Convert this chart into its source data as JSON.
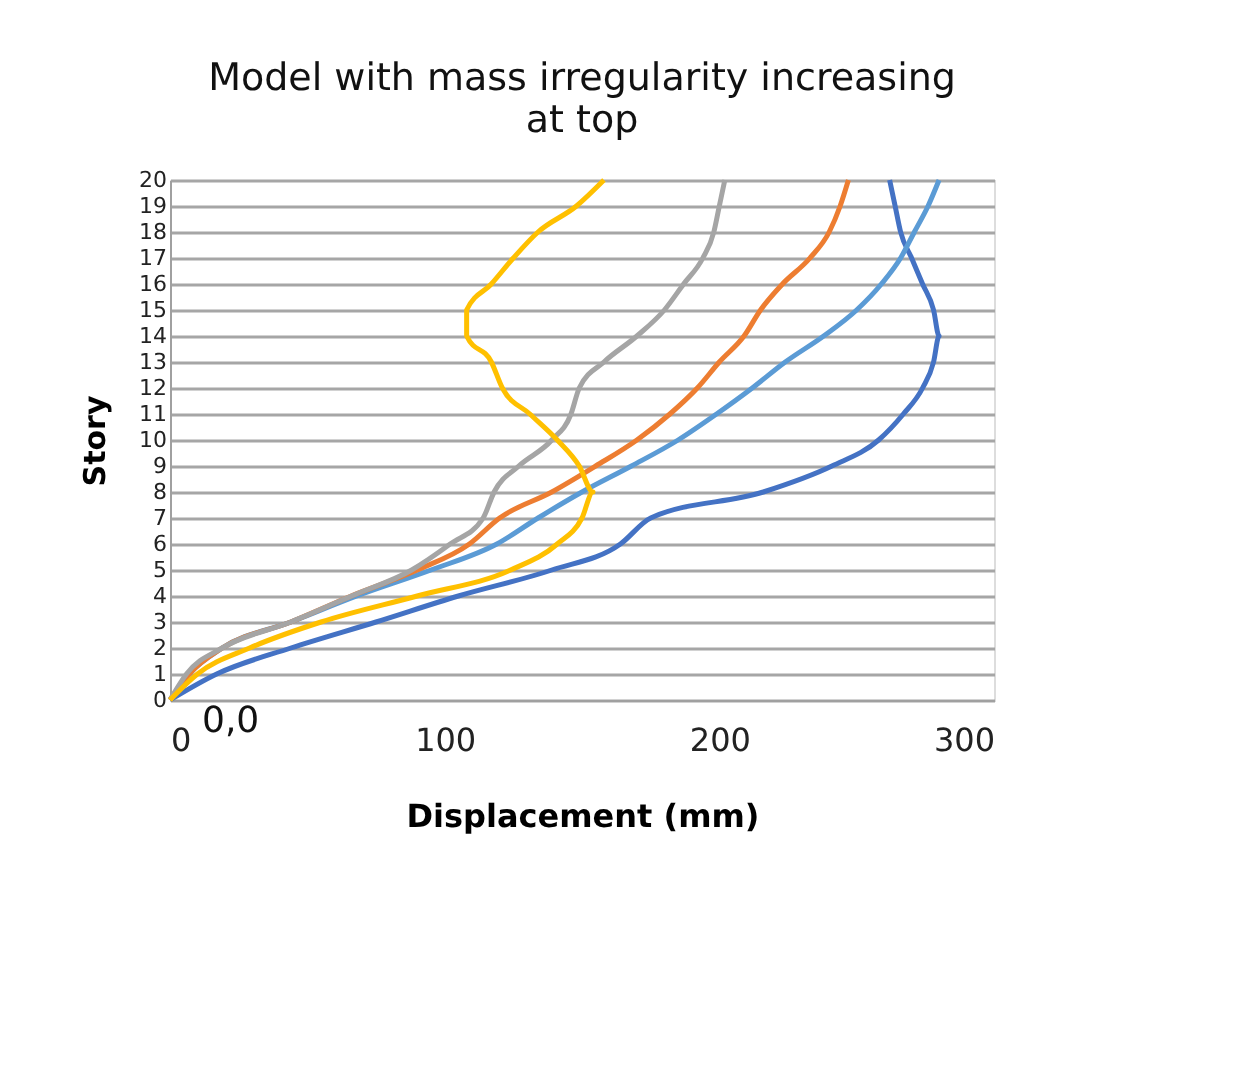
{
  "chart_data": {
    "type": "line",
    "title": "Model with mass irregularity increasing at top",
    "xlabel": "Displacement (mm)",
    "ylabel": "Story",
    "xlim": [
      0,
      300
    ],
    "xticks": [
      0,
      100,
      200,
      300
    ],
    "ylim": [
      0,
      20
    ],
    "yticks": [
      0,
      1,
      2,
      3,
      4,
      5,
      6,
      7,
      8,
      9,
      10,
      11,
      12,
      13,
      14,
      15,
      16,
      17,
      18,
      19,
      20
    ],
    "grid": "y",
    "legend": false,
    "marker": "none",
    "line_style": "solid",
    "annotations": [
      {
        "text": "0,0",
        "x": 0,
        "y": 0
      }
    ],
    "series": [
      {
        "color": "#4472c4",
        "x": [
          0,
          17,
          44,
          75,
          105,
          139,
          164,
          175,
          216,
          241,
          258,
          267,
          274,
          278,
          280,
          278,
          274,
          270,
          266,
          264,
          262
        ],
        "values": [
          0,
          1,
          2,
          3,
          4,
          5,
          6,
          7,
          8,
          9,
          10,
          11,
          12,
          13,
          14,
          15,
          16,
          17,
          18,
          19,
          20
        ]
      },
      {
        "color": "#5b9bd5",
        "x": [
          0,
          7,
          19,
          44,
          68,
          95,
          119,
          134,
          150,
          168,
          185,
          199,
          212,
          224,
          238,
          250,
          259,
          266,
          271,
          276,
          280
        ],
        "values": [
          0,
          1,
          2,
          3,
          4,
          5,
          6,
          7,
          8,
          9,
          10,
          11,
          12,
          13,
          14,
          15,
          16,
          17,
          18,
          19,
          20
        ]
      },
      {
        "color": "#ed7d31",
        "x": [
          0,
          7,
          19,
          44,
          66,
          90,
          109,
          120,
          139,
          155,
          170,
          182,
          192,
          200,
          209,
          215,
          223,
          233,
          240,
          244,
          247
        ],
        "values": [
          0,
          1,
          2,
          3,
          4,
          5,
          6,
          7,
          8,
          9,
          10,
          11,
          12,
          13,
          14,
          15,
          16,
          17,
          18,
          19,
          20
        ]
      },
      {
        "color": "#a5a5a5",
        "x": [
          0,
          6,
          19,
          44,
          66,
          88,
          102,
          114,
          118,
          127,
          139,
          146,
          149,
          158,
          170,
          180,
          187,
          194,
          198,
          200,
          202
        ],
        "values": [
          0,
          1,
          2,
          3,
          4,
          5,
          6,
          7,
          8,
          9,
          10,
          11,
          12,
          13,
          14,
          15,
          16,
          17,
          18,
          19,
          20
        ]
      },
      {
        "color": "#ffc000",
        "x": [
          0,
          10,
          29,
          55,
          90,
          124,
          141,
          150,
          154,
          149,
          141,
          131,
          121,
          117,
          108,
          108,
          117,
          125,
          134,
          148,
          158
        ],
        "values": [
          0,
          1,
          2,
          3,
          4,
          5,
          6,
          7,
          8,
          9,
          10,
          11,
          12,
          13,
          14,
          15,
          16,
          17,
          18,
          19,
          20
        ]
      }
    ]
  }
}
